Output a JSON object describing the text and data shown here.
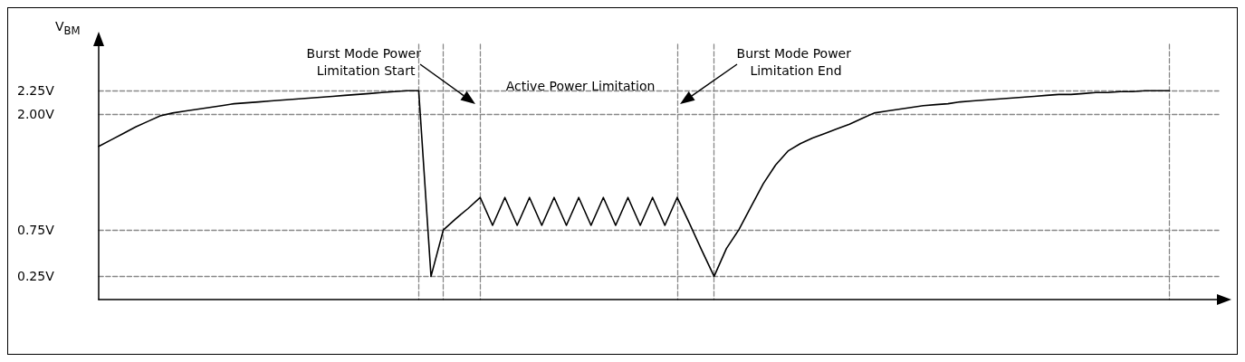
{
  "chart_data": {
    "type": "line",
    "ylabel": "V$_{BM}$",
    "categories": [
      null,
      null,
      null,
      null,
      null,
      null,
      null,
      null,
      null,
      null,
      null,
      null,
      null,
      null,
      null,
      null,
      null,
      null,
      null,
      null,
      null,
      null,
      null,
      null,
      null,
      null,
      null,
      null,
      null,
      null,
      null,
      null,
      null,
      null,
      null,
      null,
      null,
      null,
      null,
      null,
      null,
      null,
      null,
      null,
      null,
      null,
      null,
      null,
      null,
      null,
      null,
      null,
      null,
      null,
      null,
      null,
      null,
      null,
      null,
      null,
      null,
      null,
      null,
      null,
      null,
      null,
      null,
      null,
      null,
      null,
      null,
      null,
      null,
      null,
      null,
      null,
      null,
      null,
      null,
      null,
      null,
      null,
      null,
      null,
      null,
      null,
      null,
      null,
      null,
      null,
      null,
      null
    ],
    "ylim": [
      0,
      2.75
    ],
    "yticks": [
      {
        "value": 0.25,
        "label": "0.25V"
      },
      {
        "value": 0.75,
        "label": "0.75V"
      },
      {
        "value": 2.0,
        "label": "2.00V"
      },
      {
        "value": 2.25,
        "label": "2.25V"
      }
    ],
    "tick_labels": "y",
    "grid": true,
    "marker": "none",
    "line_style": "solid",
    "series": [
      {
        "color": "#000000",
        "values": [
          1.65,
          1.72,
          1.79,
          1.86,
          1.92,
          1.98,
          2.01,
          2.03,
          2.05,
          2.07,
          2.09,
          2.11,
          2.12,
          2.13,
          2.14,
          2.15,
          2.16,
          2.17,
          2.18,
          2.19,
          2.2,
          2.21,
          2.22,
          2.23,
          2.24,
          2.25,
          2.25,
          0.25,
          0.75,
          0.87,
          0.98,
          1.1,
          0.8,
          1.1,
          0.8,
          1.1,
          0.8,
          1.1,
          0.8,
          1.1,
          0.8,
          1.1,
          0.8,
          1.1,
          0.8,
          1.1,
          0.8,
          1.1,
          0.82,
          0.53,
          0.25,
          0.55,
          0.75,
          1.0,
          1.25,
          1.45,
          1.6,
          1.68,
          1.74,
          1.79,
          1.84,
          1.89,
          1.95,
          2.01,
          2.03,
          2.05,
          2.07,
          2.09,
          2.1,
          2.11,
          2.13,
          2.14,
          2.15,
          2.16,
          2.17,
          2.18,
          2.19,
          2.2,
          2.21,
          2.21,
          2.22,
          2.23,
          2.23,
          2.24,
          2.24,
          2.25,
          2.25,
          2.25,
          null,
          null,
          null,
          null
        ]
      }
    ],
    "annotations": [
      "Burst Mode Power Limitation Start",
      "Active Power Limitation",
      "Burst Mode Power Limitation End"
    ]
  }
}
